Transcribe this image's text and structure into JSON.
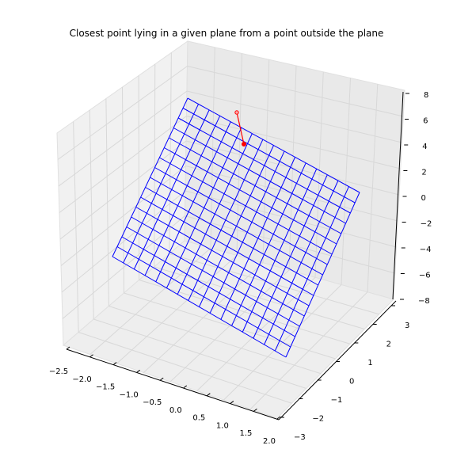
{
  "chart_data": {
    "type": "3d-wireframe",
    "title": "Closest point lying in a given plane from a point outside the plane",
    "xlabel": "",
    "ylabel": "",
    "zlabel": "",
    "x_ticks": [
      "−2.5",
      "−2.0",
      "−1.5",
      "−1.0",
      "−0.5",
      "0.0",
      "0.5",
      "1.0",
      "1.5",
      "2.0"
    ],
    "y_ticks": [
      "−3",
      "−2",
      "−1",
      "0",
      "1",
      "2",
      "3"
    ],
    "z_ticks": [
      "−8",
      "−6",
      "−4",
      "−2",
      "0",
      "2",
      "4",
      "6",
      "8"
    ],
    "xlim": [
      -2.5,
      2.0
    ],
    "ylim": [
      -3,
      3
    ],
    "zlim": [
      -8,
      8
    ],
    "plane": {
      "color": "#0000ff",
      "grid_lines": 16,
      "z_min": -8,
      "z_max": 8
    },
    "point_outside": {
      "color": "#ff0000"
    },
    "closest_point": {
      "color": "#ff0000"
    },
    "segment_color": "#ff0000",
    "grid": true
  }
}
